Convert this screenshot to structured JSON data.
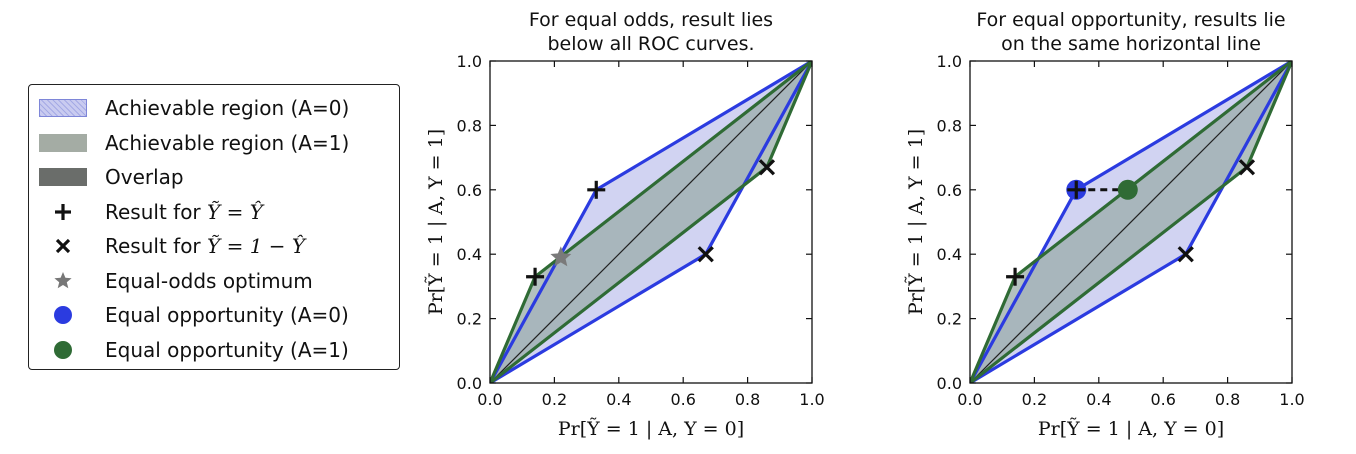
{
  "legend": {
    "items": [
      {
        "label": "Achievable region (A=0)",
        "kind": "swatch",
        "fill": "#c9cbf0",
        "stroke": "#7e86d8",
        "hatch": true
      },
      {
        "label": "Achievable region (A=1)",
        "kind": "swatch",
        "fill": "#a4aca4",
        "stroke": "#a4aca4"
      },
      {
        "label": "Overlap",
        "kind": "swatch",
        "fill": "#6a6d6a",
        "stroke": "#6a6d6a"
      },
      {
        "label_pre": "Result for ",
        "label_math": "Ỹ = Ŷ",
        "kind": "plus",
        "color": "#111111"
      },
      {
        "label_pre": "Result for ",
        "label_math": "Ỹ = 1 − Ŷ",
        "kind": "cross",
        "color": "#111111"
      },
      {
        "label": "Equal-odds optimum",
        "kind": "star",
        "color": "#777777"
      },
      {
        "label": "Equal opportunity (A=0)",
        "kind": "circle",
        "color": "#2b3be0"
      },
      {
        "label": "Equal opportunity (A=1)",
        "kind": "circle",
        "color": "#2f6b35"
      }
    ]
  },
  "chart_data": [
    {
      "type": "area",
      "title_lines": [
        "For equal odds, result lies",
        "below all ROC curves."
      ],
      "xlabel": "Pr[Ỹ = 1 | A, Y = 0]",
      "ylabel": "Pr[Ỹ = 1 | A, Y = 1]",
      "xlim": [
        0,
        1
      ],
      "ylim": [
        0,
        1
      ],
      "xticks": [
        "0.0",
        "0.2",
        "0.4",
        "0.6",
        "0.8",
        "1.0"
      ],
      "yticks": [
        "0.0",
        "0.2",
        "0.4",
        "0.6",
        "0.8",
        "1.0"
      ],
      "regions": [
        {
          "name": "Achievable region (A=0)",
          "color": "#2b3be0",
          "fill": "#c9cbf0",
          "points": [
            [
              0,
              0
            ],
            [
              0.33,
              0.6
            ],
            [
              1,
              1
            ],
            [
              0.67,
              0.4
            ]
          ]
        },
        {
          "name": "Achievable region (A=1)",
          "color": "#2f6b35",
          "fill": "#9aacaa",
          "points": [
            [
              0,
              0
            ],
            [
              0.14,
              0.33
            ],
            [
              1,
              1
            ],
            [
              0.86,
              0.67
            ]
          ]
        }
      ],
      "plus_points": [
        [
          0.33,
          0.6
        ],
        [
          0.14,
          0.33
        ]
      ],
      "cross_points": [
        [
          0.67,
          0.4
        ],
        [
          0.86,
          0.67
        ]
      ],
      "star_points": [
        [
          0.22,
          0.39
        ]
      ],
      "circles": [],
      "dashed": []
    },
    {
      "type": "area",
      "title_lines": [
        "For equal opportunity, results lie",
        "on the same horizontal line"
      ],
      "xlabel": "Pr[Ỹ = 1 | A, Y = 0]",
      "ylabel": "Pr[Ỹ = 1 | A, Y = 1]",
      "xlim": [
        0,
        1
      ],
      "ylim": [
        0,
        1
      ],
      "xticks": [
        "0.0",
        "0.2",
        "0.4",
        "0.6",
        "0.8",
        "1.0"
      ],
      "yticks": [
        "0.0",
        "0.2",
        "0.4",
        "0.6",
        "0.8",
        "1.0"
      ],
      "regions": [
        {
          "name": "Achievable region (A=0)",
          "color": "#2b3be0",
          "fill": "#c9cbf0",
          "points": [
            [
              0,
              0
            ],
            [
              0.33,
              0.6
            ],
            [
              1,
              1
            ],
            [
              0.67,
              0.4
            ]
          ]
        },
        {
          "name": "Achievable region (A=1)",
          "color": "#2f6b35",
          "fill": "#9aacaa",
          "points": [
            [
              0,
              0
            ],
            [
              0.14,
              0.33
            ],
            [
              1,
              1
            ],
            [
              0.86,
              0.67
            ]
          ]
        }
      ],
      "plus_points": [
        [
          0.33,
          0.6
        ],
        [
          0.14,
          0.33
        ]
      ],
      "cross_points": [
        [
          0.67,
          0.4
        ],
        [
          0.86,
          0.67
        ]
      ],
      "star_points": [],
      "circles": [
        {
          "x": 0.33,
          "y": 0.6,
          "color": "#2b3be0"
        },
        {
          "x": 0.49,
          "y": 0.6,
          "color": "#2f6b35"
        }
      ],
      "dashed": [
        [
          [
            0.33,
            0.6
          ],
          [
            0.49,
            0.6
          ]
        ]
      ]
    }
  ]
}
